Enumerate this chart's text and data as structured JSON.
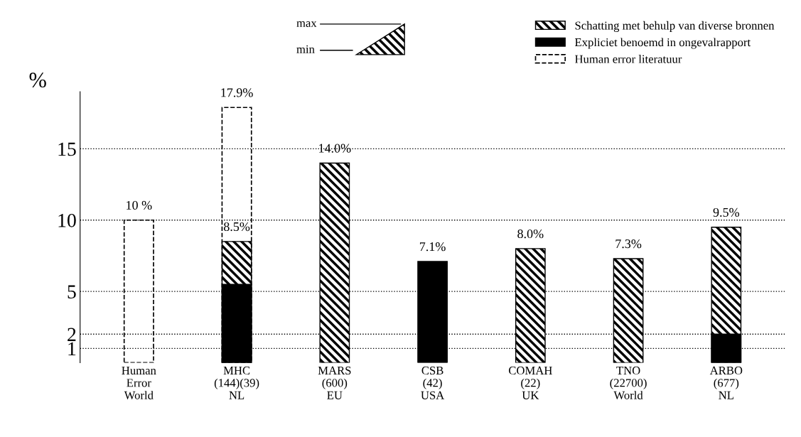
{
  "chart_data": {
    "type": "bar",
    "categories": [
      "Human\nError\nWorld",
      "MHC\n(144)(39)\nNL",
      "MARS\n(600)\nEU",
      "CSB\n(42)\nUSA",
      "COMAH\n(22)\nUK",
      "TNO\n(22700)\nWorld",
      "ARBO\n(677)\nNL"
    ],
    "ylabel": "%",
    "ylim": [
      0,
      19
    ],
    "yticks": [
      1,
      2,
      5,
      10,
      15
    ],
    "grid": "y",
    "legend": "top right",
    "annotations": [
      "max",
      "min"
    ],
    "series": [
      {
        "name": "Schatting met behulp van diverse bronnen",
        "color": "#000000",
        "values": [
          null,
          8.5,
          14.0,
          null,
          8.0,
          7.3,
          9.5
        ],
        "value_labels": [
          null,
          "8.5%",
          "14.0%",
          null,
          "8.0%",
          "7.3%",
          "9.5%"
        ]
      },
      {
        "name": "Expliciet benoemd in ongevalrapport",
        "line_style": "solid",
        "color": "#000000",
        "values": [
          null,
          5.5,
          null,
          7.1,
          null,
          null,
          2
        ],
        "value_labels": [
          null,
          null,
          null,
          "7.1%",
          null,
          null,
          null
        ]
      },
      {
        "name": "Human error literatuur",
        "line_style": "dashed",
        "color": "#000000",
        "values": [
          10,
          17.9,
          null,
          null,
          null,
          null,
          null
        ],
        "value_labels": [
          "10 %",
          "17.9%",
          null,
          null,
          null,
          null,
          null
        ]
      }
    ]
  }
}
